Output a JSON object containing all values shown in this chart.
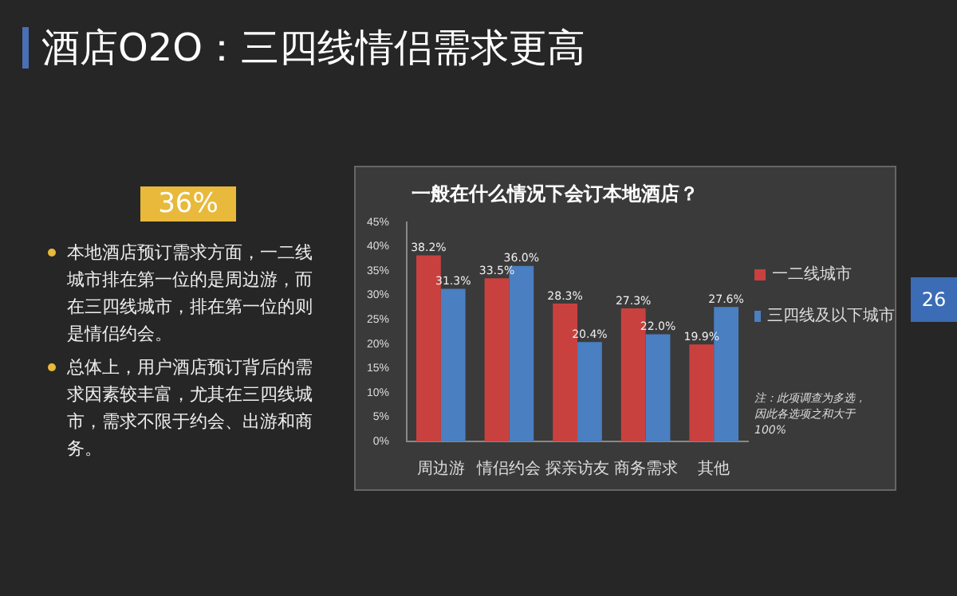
{
  "chart_data": {
    "type": "bar",
    "title": "酒店O2O：三四线情侣需求更高",
    "subtitle": "一般在什么情况下会订本地酒店？",
    "categories": [
      "周边游",
      "情侣约会",
      "探亲访友",
      "商务需求",
      "其他"
    ],
    "series": [
      {
        "name": "一二线城市",
        "color": "#c9413f",
        "values": [
          38.2,
          33.5,
          28.3,
          27.3,
          19.9
        ],
        "value_labels": [
          "38.2%",
          "33.5%",
          "28.3%",
          "27.3%",
          "19.9%"
        ]
      },
      {
        "name": "三四线及以下城市",
        "color": "#4a7fc1",
        "values": [
          31.3,
          36.0,
          20.4,
          22.0,
          27.6
        ],
        "value_labels": [
          "31.3%",
          "36.0%",
          "20.4%",
          "22.0%",
          "27.6%"
        ]
      }
    ],
    "ylim": [
      0,
      45
    ],
    "yticks": [
      {
        "value": 0,
        "label": "0%"
      },
      {
        "value": 5,
        "label": "5%"
      },
      {
        "value": 10,
        "label": "10%"
      },
      {
        "value": 15,
        "label": "15%"
      },
      {
        "value": 20,
        "label": "20%"
      },
      {
        "value": 25,
        "label": "25%"
      },
      {
        "value": 30,
        "label": "30%"
      },
      {
        "value": 35,
        "label": "35%"
      },
      {
        "value": 40,
        "label": "40%"
      },
      {
        "value": 45,
        "label": "45%"
      }
    ],
    "grid": false,
    "legend": "right",
    "annotations": [
      "36%",
      "本地酒店预订需求方面，一二线城市排在第一位的是周边游，而在三四线城市，排在第一位的则是情侣约会。",
      "总体上，用户酒店预订背后的需求因素较丰富，尤其在三四线城市，需求不限于约会、出游和商务。",
      "注：此项调查为多选，因此各选项之和大于100%",
      "26"
    ]
  }
}
